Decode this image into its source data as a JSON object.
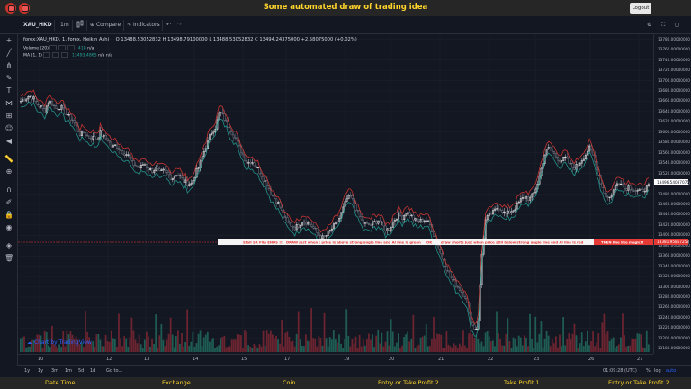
{
  "banner": {
    "title": "Some automated draw of trading idea",
    "logout_label": "Logout"
  },
  "toolbar": {
    "symbol": "XAU_HKD",
    "interval": "1m",
    "compare_label": "Compare",
    "indicators_label": "Indicators"
  },
  "legend": {
    "series_title": "forex:XAU_HKD, 1, forex, Heikin Ashi",
    "ohlc": "O 13488.53052832  H 13498.79100000  L 13488.53052832  C 13494.24375000  +2.58075000 (+0.02%)",
    "volume_label": "Volume (20)",
    "volume_value": "418",
    "volume_na": "n/a",
    "ma_label": "MA (1, 1)",
    "ma_value": "13493.4865",
    "ma_na1": "n/a",
    "ma_na2": "n/a"
  },
  "price_axis": {
    "ticks": [
      "13780.00000000",
      "13760.00000000",
      "13740.00000000",
      "13720.00000000",
      "13700.00000000",
      "13680.00000000",
      "13660.00000000",
      "13640.00000000",
      "13620.00000000",
      "13600.00000000",
      "13580.00000000",
      "13560.00000000",
      "13540.00000000",
      "13520.00000000",
      "13500.00000000",
      "13480.00000000",
      "13460.00000000",
      "13440.00000000",
      "13420.00000000",
      "13400.00000000",
      "13380.00000000",
      "13360.00000000",
      "13340.00000000",
      "13320.00000000",
      "13300.00000000",
      "13280.00000000",
      "13260.00000000",
      "13240.00000000",
      "13220.00000000",
      "13200.00000000",
      "13180.00000000"
    ],
    "last_price": "13496.54037075",
    "line_price": "13381.95857258"
  },
  "annotations": {
    "note1": "Stall SR Flip ENDS !!",
    "note2": "DRAW just when : price is above strong angle line and AI line is green",
    "note3": "OK",
    "note4": "draw shorts just when price still below strong angle line and AI line is red",
    "note5": "THEN line like magic!!"
  },
  "time_axis": {
    "ticks": [
      "10",
      "12",
      "13",
      "14",
      "15",
      "17",
      "19",
      "20",
      "21",
      "22",
      "23",
      "26",
      "27"
    ]
  },
  "timeframes": [
    "1y",
    "1y",
    "3m",
    "1m",
    "5d",
    "1d",
    "Go to..."
  ],
  "status": {
    "clock": "01:09:28 (UTC)",
    "pct": "%",
    "log": "log",
    "auto": "auto"
  },
  "watermark": "Chart by TradingView",
  "footer": {
    "items": [
      "Date Time",
      "Exchange",
      "Coin",
      "Entry or Take Profit 2",
      "Take Profit 1",
      "Entry or Take Profit 2"
    ]
  },
  "chart_data": {
    "type": "candlestick",
    "ylim": [
      13170,
      13790
    ],
    "close": [
      13660,
      13665,
      13670,
      13668,
      13655,
      13650,
      13640,
      13660,
      13655,
      13645,
      13650,
      13640,
      13630,
      13625,
      13610,
      13595,
      13600,
      13590,
      13590,
      13585,
      13600,
      13590,
      13585,
      13570,
      13575,
      13565,
      13560,
      13555,
      13540,
      13535,
      13530,
      13540,
      13530,
      13525,
      13530,
      13520,
      13525,
      13520,
      13510,
      13520,
      13515,
      13505,
      13500,
      13500,
      13520,
      13535,
      13560,
      13580,
      13600,
      13610,
      13640,
      13630,
      13615,
      13600,
      13590,
      13570,
      13555,
      13540,
      13545,
      13535,
      13525,
      13510,
      13500,
      13480,
      13470,
      13460,
      13440,
      13425,
      13420,
      13415,
      13420,
      13430,
      13425,
      13420,
      13410,
      13400,
      13395,
      13400,
      13410,
      13420,
      13430,
      13450,
      13470,
      13475,
      13460,
      13440,
      13425,
      13420,
      13420,
      13425,
      13430,
      13420,
      13410,
      13415,
      13430,
      13440,
      13435,
      13445,
      13440,
      13430,
      13425,
      13430,
      13430,
      13420,
      13400,
      13380,
      13360,
      13340,
      13320,
      13310,
      13300,
      13290,
      13280,
      13240,
      13220,
      13220,
      13360,
      13430,
      13440,
      13445,
      13455,
      13450,
      13440,
      13445,
      13450,
      13460,
      13470,
      13475,
      13470,
      13480,
      13500,
      13530,
      13560,
      13570,
      13560,
      13550,
      13545,
      13550,
      13540,
      13530,
      13535,
      13545,
      13555,
      13570,
      13555,
      13530,
      13500,
      13480,
      13470,
      13485,
      13500,
      13505,
      13490,
      13495,
      13490,
      13485,
      13485,
      13490,
      13494
    ]
  }
}
